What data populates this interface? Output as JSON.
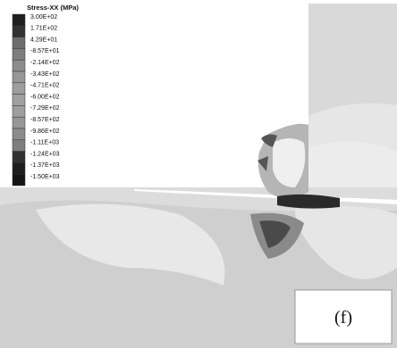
{
  "legend": {
    "title": "Stress-XX (MPa)",
    "labels": [
      "3.00E+02",
      "1.71E+02",
      "4.29E+01",
      "-8.57E+01",
      "-2.14E+02",
      "-3.43E+02",
      "-4.71E+02",
      "-6.00E+02",
      "-7.29E+02",
      "-8.57E+02",
      "-9.86E+02",
      "-1.11E+03",
      "-1.24E+03",
      "-1.37E+03",
      "-1.50E+03"
    ]
  },
  "panel_label": "(f)"
}
